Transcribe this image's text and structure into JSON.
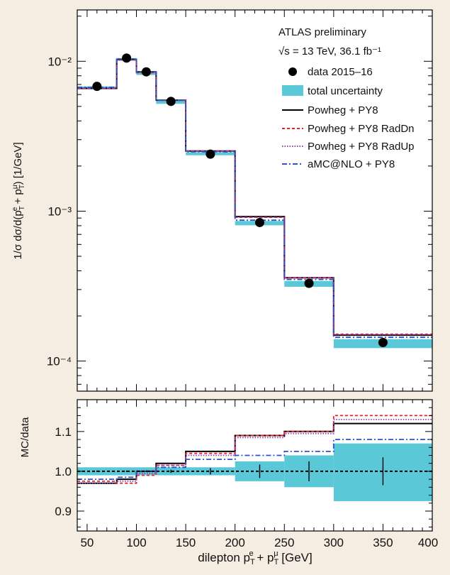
{
  "chart_data": [
    {
      "type": "line",
      "panel": "main",
      "title": "",
      "annotation": [
        "ATLAS preliminary",
        "√s = 13 TeV, 36.1 fb⁻¹"
      ],
      "xlabel": "",
      "ylabel": "1/σ dσ/d(p_T^e + p_T^μ) [1/GeV]",
      "yscale": "log",
      "xlim": [
        40,
        400
      ],
      "ylim": [
        6.3e-05,
        0.022
      ],
      "bin_edges": [
        40,
        80,
        100,
        120,
        150,
        200,
        250,
        300,
        400
      ],
      "y_ticks": [
        {
          "value": 0.01,
          "label": "10⁻²"
        },
        {
          "value": 0.001,
          "label": "10⁻³"
        },
        {
          "value": 0.0001,
          "label": "10⁻⁴"
        }
      ],
      "data_points": {
        "name": "data 2015–16",
        "x": [
          60,
          90,
          110,
          135,
          175,
          225,
          275,
          350
        ],
        "y": [
          0.0068,
          0.0105,
          0.0085,
          0.0054,
          0.0024,
          0.00084,
          0.00033,
          0.000133
        ]
      },
      "uncertainty_band": {
        "name": "total uncertainty",
        "low": [
          0.0065,
          0.0101,
          0.0081,
          0.0052,
          0.00236,
          0.000805,
          0.000313,
          0.000122
        ],
        "high": [
          0.0068,
          0.0105,
          0.0084,
          0.0055,
          0.00247,
          0.00086,
          0.000342,
          0.00014
        ]
      },
      "series": [
        {
          "name": "Powheg + PY8",
          "values": [
            0.0066,
            0.0103,
            0.0085,
            0.0055,
            0.00252,
            0.00092,
            0.00036,
            0.000149
          ]
        },
        {
          "name": "Powheg + PY8 RadDn",
          "values": [
            0.0066,
            0.0102,
            0.0084,
            0.0055,
            0.00252,
            0.00091,
            0.00036,
            0.000151
          ]
        },
        {
          "name": "Powheg + PY8 RadUp",
          "values": [
            0.0066,
            0.0102,
            0.0084,
            0.0055,
            0.00251,
            0.00091,
            0.00036,
            0.00015
          ]
        },
        {
          "name": "aMC@NLO + PY8",
          "values": [
            0.0067,
            0.0103,
            0.0085,
            0.0055,
            0.00249,
            0.00087,
            0.00035,
            0.000144
          ]
        }
      ],
      "legend_position": "top-right"
    },
    {
      "type": "line",
      "panel": "ratio",
      "xlabel": "dilepton p_T^e + p_T^μ [GeV]",
      "ylabel": "MC/data",
      "xlim": [
        40,
        400
      ],
      "ylim": [
        0.85,
        1.18
      ],
      "x_ticks": [
        50,
        100,
        150,
        200,
        250,
        300,
        350,
        400
      ],
      "y_ticks": [
        {
          "value": 0.9,
          "label": "0.9"
        },
        {
          "value": 1.0,
          "label": "1.0"
        },
        {
          "value": 1.1,
          "label": "1.1"
        }
      ],
      "bin_edges": [
        40,
        80,
        100,
        120,
        150,
        200,
        250,
        300,
        400
      ],
      "uncertainty_band": {
        "low": [
          0.99,
          0.99,
          0.99,
          0.99,
          0.99,
          0.975,
          0.96,
          0.925
        ],
        "high": [
          1.01,
          1.01,
          1.01,
          1.01,
          1.01,
          1.025,
          1.04,
          1.07
        ]
      },
      "data_errors": {
        "x": [
          60,
          90,
          110,
          135,
          175,
          225,
          275,
          350
        ],
        "low": [
          0.998,
          0.998,
          0.998,
          0.996,
          0.992,
          0.983,
          0.975,
          0.965
        ],
        "high": [
          1.002,
          1.002,
          1.002,
          1.004,
          1.008,
          1.017,
          1.025,
          1.035
        ]
      },
      "series": [
        {
          "name": "Powheg + PY8",
          "values": [
            0.97,
            0.98,
            1.0,
            1.02,
            1.05,
            1.09,
            1.1,
            1.12
          ]
        },
        {
          "name": "Powheg + PY8 RadDn",
          "values": [
            0.975,
            0.97,
            0.99,
            1.015,
            1.045,
            1.09,
            1.1,
            1.14
          ]
        },
        {
          "name": "Powheg + PY8 RadUp",
          "values": [
            0.97,
            0.975,
            0.995,
            1.015,
            1.04,
            1.085,
            1.095,
            1.13
          ]
        },
        {
          "name": "aMC@NLO + PY8",
          "values": [
            0.98,
            0.985,
            1.0,
            1.01,
            1.03,
            1.04,
            1.05,
            1.08
          ]
        }
      ],
      "reference_line": 1.0
    }
  ],
  "colors": {
    "background": "#f5ece2",
    "band": "#5bc8d8",
    "data": "#000000",
    "powheg": "#000000",
    "raddn": "#e8202a",
    "radup": "#8a3fa8",
    "amc": "#2a55c8"
  }
}
